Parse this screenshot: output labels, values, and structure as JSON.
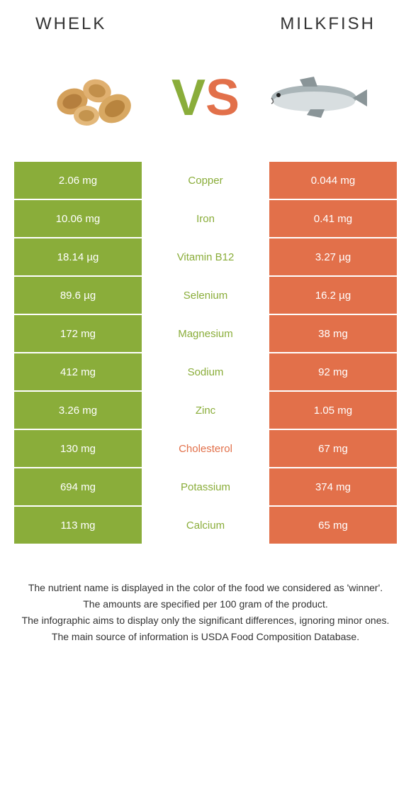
{
  "header": {
    "left_title": "WHELK",
    "right_title": "MILKFISH"
  },
  "vs": {
    "v": "V",
    "s": "S"
  },
  "colors": {
    "left": "#8aad3a",
    "right": "#e2704a"
  },
  "rows": [
    {
      "left": "2.06 mg",
      "label": "Copper",
      "winner": "left",
      "right": "0.044 mg"
    },
    {
      "left": "10.06 mg",
      "label": "Iron",
      "winner": "left",
      "right": "0.41 mg"
    },
    {
      "left": "18.14 µg",
      "label": "Vitamin B12",
      "winner": "left",
      "right": "3.27 µg"
    },
    {
      "left": "89.6 µg",
      "label": "Selenium",
      "winner": "left",
      "right": "16.2 µg"
    },
    {
      "left": "172 mg",
      "label": "Magnesium",
      "winner": "left",
      "right": "38 mg"
    },
    {
      "left": "412 mg",
      "label": "Sodium",
      "winner": "left",
      "right": "92 mg"
    },
    {
      "left": "3.26 mg",
      "label": "Zinc",
      "winner": "left",
      "right": "1.05 mg"
    },
    {
      "left": "130 mg",
      "label": "Cholesterol",
      "winner": "right",
      "right": "67 mg"
    },
    {
      "left": "694 mg",
      "label": "Potassium",
      "winner": "left",
      "right": "374 mg"
    },
    {
      "left": "113 mg",
      "label": "Calcium",
      "winner": "left",
      "right": "65 mg"
    }
  ],
  "footnotes": {
    "l1": "The nutrient name is displayed in the color of the food we considered as 'winner'.",
    "l2": "The amounts are specified per 100 gram of the product.",
    "l3": "The infographic aims to display only the significant differences, ignoring minor ones.",
    "l4": "The main source of information is USDA Food Composition Database."
  }
}
